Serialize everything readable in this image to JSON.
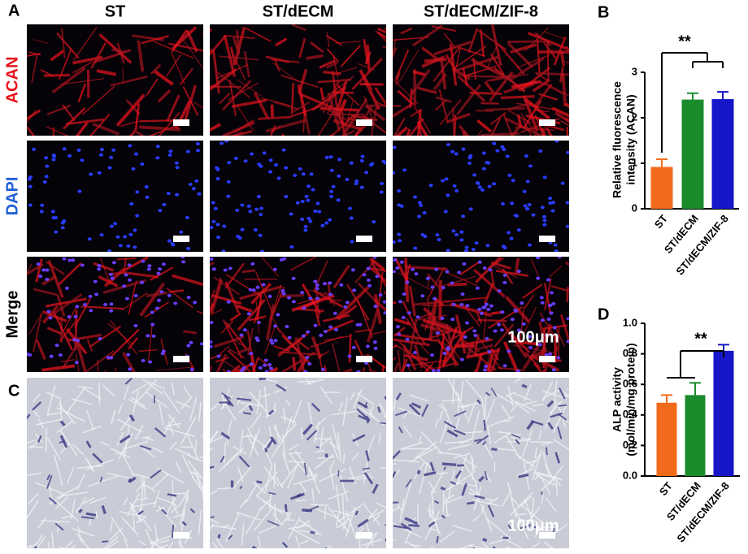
{
  "figure": {
    "panel_labels": [
      "A",
      "B",
      "C",
      "D"
    ],
    "columns": [
      "ST",
      "ST/dECM",
      "ST/dECM/ZIF-8"
    ],
    "rows": [
      {
        "label": "ACAN",
        "color": "#e8141b"
      },
      {
        "label": "DAPI",
        "color": "#1f5fd6"
      },
      {
        "label": "Merge",
        "color": "#000000"
      }
    ],
    "scale_bar_labels": [
      "100μm",
      "100μm"
    ]
  },
  "chart_data": [
    {
      "type": "bar",
      "y_label": [
        "Relative fluorescence",
        "intensity (ACAN)"
      ],
      "categories": [
        "ST",
        "ST/dECM",
        "ST/dECM/ZIF-8"
      ],
      "values": [
        0.92,
        2.4,
        2.41
      ],
      "errors": [
        0.17,
        0.14,
        0.16
      ],
      "colors": [
        "#f26b1d",
        "#1b8c2c",
        "#1717c9"
      ],
      "ylim": [
        0,
        3
      ],
      "yticks": [
        0,
        1,
        2,
        3
      ],
      "annotation": "**"
    },
    {
      "type": "bar",
      "y_label": [
        "ALP activity",
        "(mol/min/mg protein)"
      ],
      "categories": [
        "ST",
        "ST/dECM",
        "ST/dECM/ZIF-8"
      ],
      "values": [
        0.48,
        0.53,
        0.82
      ],
      "errors": [
        0.05,
        0.08,
        0.04
      ],
      "colors": [
        "#f26b1d",
        "#1b8c2c",
        "#1717c9"
      ],
      "ylim": [
        0,
        1
      ],
      "yticks": [
        {
          "value": 0,
          "label": "0.0"
        },
        0.2,
        0.4,
        0.6,
        0.8,
        {
          "value": 1,
          "label": "1.0"
        }
      ],
      "annotation": "**"
    }
  ]
}
